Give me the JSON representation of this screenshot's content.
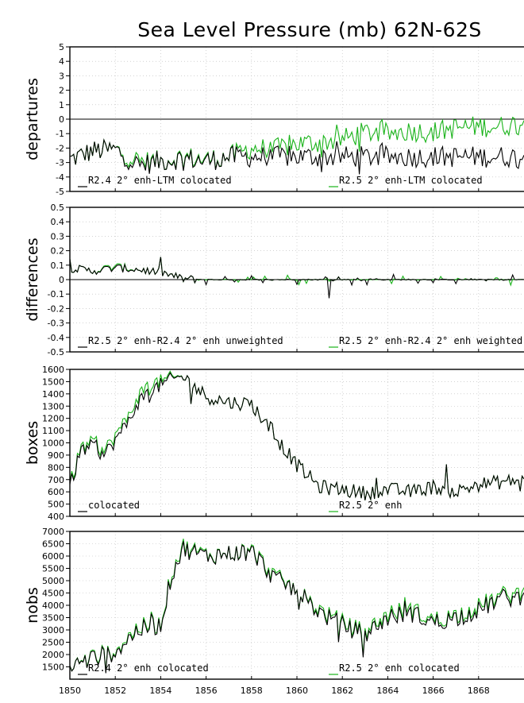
{
  "chart_data": {
    "title": "Sea Level Pressure (mb) 62N-62S",
    "x_ticks": [
      1850,
      1852,
      1854,
      1856,
      1858,
      1860,
      1862,
      1864,
      1866,
      1868
    ],
    "xlim": [
      1850,
      1870
    ],
    "colors": {
      "r24": "#000000",
      "r25": "#19b319"
    },
    "panels": [
      {
        "type": "line",
        "ylabel": "departures",
        "ylim": [
          -5,
          5
        ],
        "yticks": [
          -5,
          -4,
          -3,
          -2,
          -1,
          0,
          1,
          2,
          3,
          4,
          5
        ],
        "zero_line": true,
        "legend": [
          "R2.4 2° enh-LTM colocated",
          "R2.5 2° enh-LTM colocated"
        ],
        "series": [
          {
            "name": "R2.4 2° enh-LTM colocated",
            "color": "#000000",
            "anchors": [
              [
                1850,
                -2.8
              ],
              [
                1851,
                -2.2
              ],
              [
                1852,
                -2.1
              ],
              [
                1853,
                -3.2
              ],
              [
                1854,
                -2.9
              ],
              [
                1855,
                -2.7
              ],
              [
                1856,
                -2.9
              ],
              [
                1857,
                -2.6
              ]
            ]
          },
          {
            "name": "R2.5 2° enh-LTM colocated",
            "color": "#19b319",
            "anchors": [
              [
                1850,
                -2.8
              ],
              [
                1851,
                -2.2
              ],
              [
                1852,
                -2.1
              ],
              [
                1853,
                -2.9
              ],
              [
                1854,
                -2.9
              ],
              [
                1855,
                -2.6
              ],
              [
                1856,
                -2.8
              ],
              [
                1857,
                -2.6
              ],
              [
                1858,
                -2.0
              ],
              [
                1859,
                -2.1
              ],
              [
                1860,
                -1.7
              ],
              [
                1861,
                -1.6
              ],
              [
                1862,
                -1.4
              ],
              [
                1863,
                -0.9
              ],
              [
                1864,
                -1.0
              ],
              [
                1865,
                -0.8
              ],
              [
                1866,
                -0.9
              ],
              [
                1867,
                -0.6
              ],
              [
                1868,
                -0.5
              ],
              [
                1869,
                -0.5
              ],
              [
                1870,
                -0.2
              ]
            ]
          }
        ]
      },
      {
        "type": "line",
        "ylabel": "differences",
        "ylim": [
          -0.5,
          0.5
        ],
        "yticks": [
          -0.5,
          -0.4,
          -0.3,
          -0.2,
          -0.1,
          0,
          0.1,
          0.2,
          0.3,
          0.4,
          0.5
        ],
        "zero_line": true,
        "legend": [
          "R2.5 2° enh-R2.4 2° enh unweighted",
          "R2.5 2° enh-R2.4 2° enh weighted"
        ],
        "series": [
          {
            "name": "R2.5 2° enh-R2.4 2° enh unweighted",
            "color": "#000000",
            "anchors": [
              [
                1850,
                0.08
              ],
              [
                1851,
                0.06
              ],
              [
                1852,
                0.08
              ],
              [
                1853,
                0.07
              ],
              [
                1854,
                0.05
              ],
              [
                1855,
                0.005
              ],
              [
                1856,
                0.0
              ],
              [
                1860,
                0.0
              ],
              [
                1864,
                0.0
              ],
              [
                1868,
                0.0
              ],
              [
                1870,
                0.0
              ]
            ]
          },
          {
            "name": "R2.5 2° enh-R2.4 2° enh weighted",
            "color": "#19b319",
            "anchors": [
              [
                1850,
                0.08
              ],
              [
                1851,
                0.06
              ],
              [
                1852,
                0.09
              ],
              [
                1853,
                0.07
              ],
              [
                1854,
                0.05
              ],
              [
                1855,
                0.005
              ],
              [
                1856,
                0.0
              ],
              [
                1860,
                0.0
              ],
              [
                1864,
                0.0
              ],
              [
                1868,
                0.0
              ],
              [
                1870,
                0.0
              ]
            ]
          }
        ]
      },
      {
        "type": "line",
        "ylabel": "boxes",
        "ylim": [
          400,
          1600
        ],
        "yticks": [
          400,
          500,
          600,
          700,
          800,
          900,
          1000,
          1100,
          1200,
          1300,
          1400,
          1500,
          1600
        ],
        "zero_line": false,
        "legend": [
          "colocated",
          "R2.5 2° enh"
        ],
        "series": [
          {
            "name": "colocated",
            "color": "#000000",
            "anchors": [
              [
                1850,
                640
              ],
              [
                1850.5,
                940
              ],
              [
                1851,
                970
              ],
              [
                1851.5,
                900
              ],
              [
                1852,
                1020
              ],
              [
                1852.5,
                1150
              ],
              [
                1853,
                1330
              ],
              [
                1853.5,
                1420
              ],
              [
                1854,
                1470
              ],
              [
                1854.5,
                1520
              ],
              [
                1855,
                1540
              ],
              [
                1856,
                1380
              ],
              [
                1857,
                1330
              ],
              [
                1858,
                1320
              ],
              [
                1859,
                1060
              ],
              [
                1860,
                820
              ],
              [
                1861,
                640
              ],
              [
                1862,
                620
              ],
              [
                1863,
                590
              ],
              [
                1864,
                620
              ],
              [
                1865,
                600
              ],
              [
                1866,
                640
              ],
              [
                1867,
                600
              ],
              [
                1868,
                660
              ],
              [
                1869,
                680
              ],
              [
                1870,
                700
              ]
            ]
          },
          {
            "name": "R2.5 2° enh",
            "color": "#19b319",
            "anchors": [
              [
                1850,
                660
              ],
              [
                1850.5,
                960
              ],
              [
                1851,
                1000
              ],
              [
                1851.5,
                930
              ],
              [
                1852,
                1060
              ],
              [
                1852.5,
                1190
              ],
              [
                1853,
                1380
              ],
              [
                1853.5,
                1480
              ],
              [
                1854,
                1500
              ],
              [
                1854.5,
                1530
              ],
              [
                1855,
                1540
              ],
              [
                1856,
                1380
              ],
              [
                1857,
                1330
              ],
              [
                1858,
                1320
              ],
              [
                1859,
                1060
              ],
              [
                1860,
                820
              ],
              [
                1861,
                640
              ],
              [
                1862,
                620
              ],
              [
                1863,
                590
              ],
              [
                1864,
                620
              ],
              [
                1865,
                600
              ],
              [
                1866,
                640
              ],
              [
                1867,
                600
              ],
              [
                1868,
                660
              ],
              [
                1869,
                680
              ],
              [
                1870,
                700
              ]
            ]
          }
        ]
      },
      {
        "type": "line",
        "ylabel": "nobs",
        "ylim": [
          1000,
          7000
        ],
        "yticks": [
          1500,
          2000,
          2500,
          3000,
          3500,
          4000,
          4500,
          5000,
          5500,
          6000,
          6500,
          7000
        ],
        "zero_line": false,
        "legend": [
          "R2.4 2° enh colocated",
          "R2.5 2° enh colocated"
        ],
        "series": [
          {
            "name": "R2.4 2° enh colocated",
            "color": "#000000",
            "anchors": [
              [
                1850,
                1500
              ],
              [
                1851,
                1850
              ],
              [
                1852,
                2100
              ],
              [
                1853,
                3000
              ],
              [
                1854,
                3200
              ],
              [
                1854.5,
                5300
              ],
              [
                1855,
                6300
              ],
              [
                1856,
                6000
              ],
              [
                1857,
                6100
              ],
              [
                1858,
                6200
              ],
              [
                1859,
                5100
              ],
              [
                1860,
                4600
              ],
              [
                1861,
                3700
              ],
              [
                1862,
                3200
              ],
              [
                1863,
                2800
              ],
              [
                1864,
                3500
              ],
              [
                1865,
                3700
              ],
              [
                1866,
                3300
              ],
              [
                1867,
                3500
              ],
              [
                1868,
                3800
              ],
              [
                1869,
                4300
              ],
              [
                1870,
                4300
              ]
            ]
          },
          {
            "name": "R2.5 2° enh colocated",
            "color": "#19b319",
            "anchors": [
              [
                1850,
                1500
              ],
              [
                1851,
                1900
              ],
              [
                1852,
                2150
              ],
              [
                1853,
                3100
              ],
              [
                1854,
                3250
              ],
              [
                1854.5,
                5400
              ],
              [
                1855,
                6400
              ],
              [
                1856,
                6050
              ],
              [
                1857,
                6100
              ],
              [
                1858,
                6250
              ],
              [
                1859,
                5200
              ],
              [
                1860,
                4600
              ],
              [
                1861,
                3800
              ],
              [
                1862,
                3300
              ],
              [
                1863,
                2900
              ],
              [
                1864,
                3650
              ],
              [
                1865,
                3850
              ],
              [
                1866,
                3400
              ],
              [
                1867,
                3600
              ],
              [
                1868,
                3950
              ],
              [
                1869,
                4400
              ],
              [
                1870,
                4500
              ]
            ]
          }
        ]
      }
    ]
  }
}
